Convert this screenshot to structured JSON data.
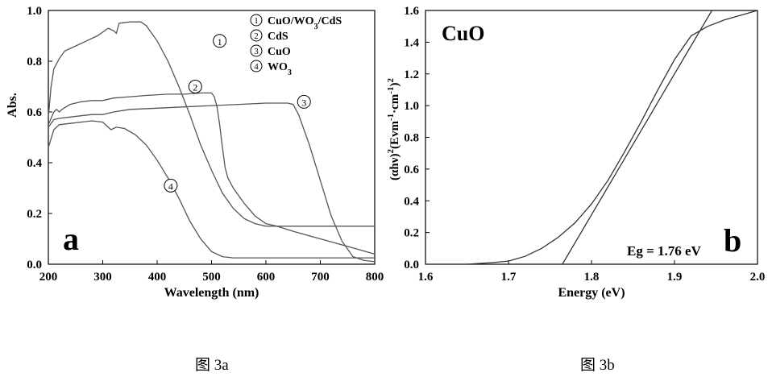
{
  "captions": {
    "a": "图 3a",
    "b": "图 3b"
  },
  "chart_data": [
    {
      "type": "line",
      "panel_label": "a",
      "xlabel": "Wavelength (nm)",
      "ylabel": "Abs.",
      "xlim": [
        200,
        800
      ],
      "ylim": [
        0.0,
        1.0
      ],
      "xticks": [
        200,
        300,
        400,
        500,
        600,
        700,
        800
      ],
      "yticks": [
        0.0,
        0.2,
        0.4,
        0.6,
        0.8,
        1.0
      ],
      "grid": false,
      "legend_position": "top-right",
      "legend": [
        {
          "marker": "1",
          "parts": [
            [
              "CuO/WO",
              "n"
            ],
            [
              "3",
              "sub"
            ],
            [
              "/CdS",
              "n"
            ]
          ]
        },
        {
          "marker": "2",
          "parts": [
            [
              "CdS",
              "n"
            ]
          ]
        },
        {
          "marker": "3",
          "parts": [
            [
              "CuO",
              "n"
            ]
          ]
        },
        {
          "marker": "4",
          "parts": [
            [
              "WO",
              "n"
            ],
            [
              "3",
              "sub"
            ]
          ]
        }
      ],
      "series": [
        {
          "marker": "1",
          "marker_at": [
            515,
            0.88
          ],
          "points": [
            [
              200,
              0.58
            ],
            [
              205,
              0.7
            ],
            [
              210,
              0.77
            ],
            [
              220,
              0.81
            ],
            [
              230,
              0.84
            ],
            [
              250,
              0.86
            ],
            [
              270,
              0.88
            ],
            [
              290,
              0.9
            ],
            [
              310,
              0.93
            ],
            [
              320,
              0.92
            ],
            [
              325,
              0.91
            ],
            [
              330,
              0.95
            ],
            [
              350,
              0.955
            ],
            [
              370,
              0.955
            ],
            [
              380,
              0.94
            ],
            [
              400,
              0.88
            ],
            [
              420,
              0.8
            ],
            [
              440,
              0.7
            ],
            [
              460,
              0.59
            ],
            [
              480,
              0.47
            ],
            [
              500,
              0.37
            ],
            [
              520,
              0.28
            ],
            [
              540,
              0.22
            ],
            [
              560,
              0.18
            ],
            [
              580,
              0.16
            ],
            [
              600,
              0.15
            ],
            [
              650,
              0.15
            ],
            [
              700,
              0.15
            ],
            [
              750,
              0.15
            ],
            [
              800,
              0.15
            ]
          ]
        },
        {
          "marker": "2",
          "marker_at": [
            470,
            0.7
          ],
          "points": [
            [
              200,
              0.55
            ],
            [
              210,
              0.6
            ],
            [
              215,
              0.61
            ],
            [
              220,
              0.6
            ],
            [
              225,
              0.61
            ],
            [
              240,
              0.63
            ],
            [
              260,
              0.64
            ],
            [
              280,
              0.645
            ],
            [
              300,
              0.645
            ],
            [
              320,
              0.655
            ],
            [
              350,
              0.66
            ],
            [
              380,
              0.665
            ],
            [
              420,
              0.67
            ],
            [
              450,
              0.67
            ],
            [
              480,
              0.675
            ],
            [
              500,
              0.675
            ],
            [
              505,
              0.66
            ],
            [
              510,
              0.62
            ],
            [
              515,
              0.55
            ],
            [
              520,
              0.46
            ],
            [
              525,
              0.38
            ],
            [
              530,
              0.34
            ],
            [
              540,
              0.3
            ],
            [
              560,
              0.24
            ],
            [
              580,
              0.19
            ],
            [
              600,
              0.16
            ],
            [
              620,
              0.15
            ],
            [
              650,
              0.13
            ],
            [
              700,
              0.1
            ],
            [
              750,
              0.07
            ],
            [
              800,
              0.04
            ]
          ]
        },
        {
          "marker": "3",
          "marker_at": [
            670,
            0.64
          ],
          "points": [
            [
              200,
              0.54
            ],
            [
              210,
              0.57
            ],
            [
              220,
              0.575
            ],
            [
              240,
              0.58
            ],
            [
              260,
              0.585
            ],
            [
              280,
              0.59
            ],
            [
              300,
              0.59
            ],
            [
              320,
              0.6
            ],
            [
              350,
              0.61
            ],
            [
              400,
              0.615
            ],
            [
              450,
              0.62
            ],
            [
              500,
              0.625
            ],
            [
              550,
              0.63
            ],
            [
              600,
              0.635
            ],
            [
              640,
              0.635
            ],
            [
              650,
              0.63
            ],
            [
              660,
              0.59
            ],
            [
              680,
              0.47
            ],
            [
              700,
              0.33
            ],
            [
              720,
              0.19
            ],
            [
              740,
              0.09
            ],
            [
              760,
              0.03
            ],
            [
              780,
              0.015
            ],
            [
              800,
              0.01
            ]
          ]
        },
        {
          "marker": "4",
          "marker_at": [
            425,
            0.31
          ],
          "points": [
            [
              200,
              0.46
            ],
            [
              210,
              0.53
            ],
            [
              220,
              0.55
            ],
            [
              240,
              0.555
            ],
            [
              260,
              0.56
            ],
            [
              280,
              0.565
            ],
            [
              300,
              0.56
            ],
            [
              315,
              0.53
            ],
            [
              325,
              0.54
            ],
            [
              340,
              0.535
            ],
            [
              360,
              0.51
            ],
            [
              380,
              0.47
            ],
            [
              400,
              0.41
            ],
            [
              420,
              0.34
            ],
            [
              440,
              0.26
            ],
            [
              460,
              0.17
            ],
            [
              480,
              0.1
            ],
            [
              500,
              0.05
            ],
            [
              520,
              0.03
            ],
            [
              540,
              0.025
            ],
            [
              600,
              0.025
            ],
            [
              700,
              0.025
            ],
            [
              800,
              0.025
            ]
          ]
        }
      ]
    },
    {
      "type": "line",
      "panel_label": "b",
      "title": "CuO",
      "xlabel": "Energy (eV)",
      "ylabel_parts": [
        [
          "(αhν)",
          "n"
        ],
        [
          "2",
          "sup"
        ],
        [
          "(Evm",
          "n"
        ],
        [
          "-1",
          "sup"
        ],
        [
          "·cm",
          "n"
        ],
        [
          "-1",
          "sup"
        ],
        [
          ")",
          "n"
        ],
        [
          "2",
          "sup"
        ]
      ],
      "xlim": [
        1.6,
        2.0
      ],
      "ylim": [
        0.0,
        1.6
      ],
      "xticks": [
        1.6,
        1.7,
        1.8,
        1.9,
        2.0
      ],
      "yticks": [
        0.0,
        0.2,
        0.4,
        0.6,
        0.8,
        1.0,
        1.2,
        1.4,
        1.6
      ],
      "grid": false,
      "annotation": "Eg = 1.76 eV",
      "series": [
        {
          "name": "data",
          "points": [
            [
              1.6,
              0.0
            ],
            [
              1.65,
              0.0
            ],
            [
              1.68,
              0.01
            ],
            [
              1.7,
              0.02
            ],
            [
              1.72,
              0.05
            ],
            [
              1.74,
              0.1
            ],
            [
              1.76,
              0.17
            ],
            [
              1.78,
              0.26
            ],
            [
              1.8,
              0.38
            ],
            [
              1.82,
              0.53
            ],
            [
              1.84,
              0.71
            ],
            [
              1.86,
              0.9
            ],
            [
              1.88,
              1.1
            ],
            [
              1.9,
              1.29
            ],
            [
              1.92,
              1.44
            ],
            [
              1.94,
              1.5
            ],
            [
              1.96,
              1.54
            ],
            [
              1.98,
              1.57
            ],
            [
              2.0,
              1.6
            ]
          ]
        },
        {
          "name": "tangent",
          "points": [
            [
              1.765,
              0.0
            ],
            [
              1.945,
              1.6
            ]
          ]
        }
      ]
    }
  ]
}
